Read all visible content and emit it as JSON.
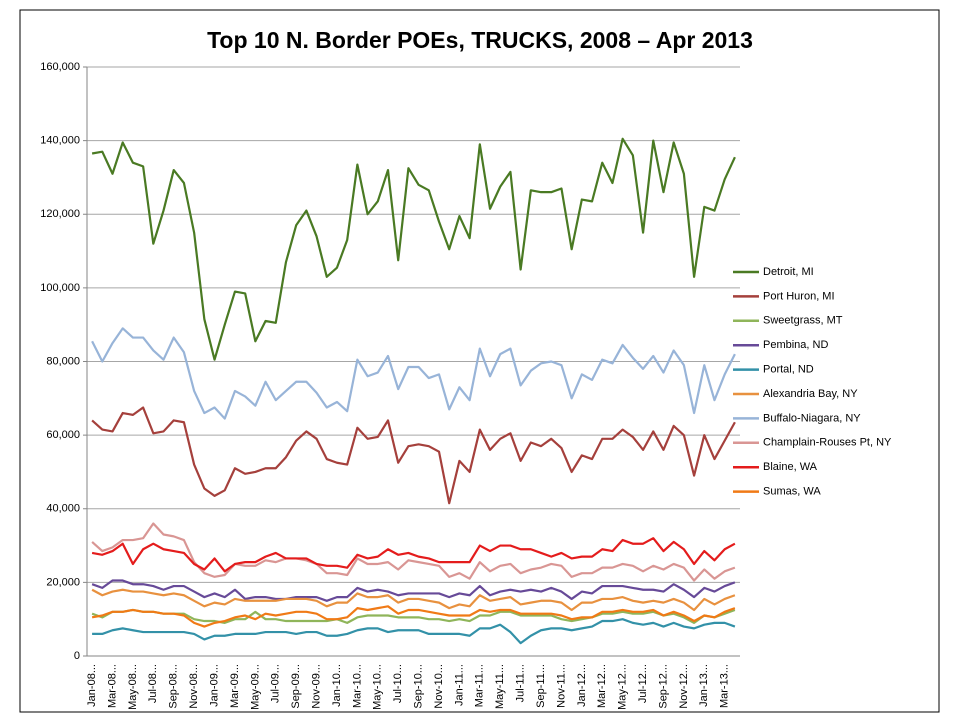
{
  "chart_data": {
    "type": "line",
    "title": "Top 10 N. Border POEs,  TRUCKS, 2008 – Apr 2013",
    "categories": [
      "Jan-08...",
      null,
      "Mar-08...",
      null,
      "May-08...",
      null,
      "Jul-08...",
      null,
      "Sep-08...",
      null,
      "Nov-08...",
      null,
      "Jan-09...",
      null,
      "Mar-09...",
      null,
      "May-09...",
      null,
      "Jul-09...",
      null,
      "Sep-09...",
      null,
      "Nov-09...",
      null,
      "Jan-10...",
      null,
      "Mar-10...",
      null,
      "May-10...",
      null,
      "Jul-10...",
      null,
      "Sep-10...",
      null,
      "Nov-10...",
      null,
      "Jan-11...",
      null,
      "Mar-11...",
      null,
      "May-11...",
      null,
      "Jul-11...",
      null,
      "Sep-11...",
      null,
      "Nov-11...",
      null,
      "Jan-12...",
      null,
      "Mar-12...",
      null,
      "May-12...",
      null,
      "Jul-12...",
      null,
      "Sep-12...",
      null,
      "Nov-12...",
      null,
      "Jan-13...",
      null,
      "Mar-13...",
      null
    ],
    "ylim": [
      0,
      160000
    ],
    "yticks": [
      0,
      {
        "value": 20000,
        "label": "20,000"
      },
      {
        "value": 40000,
        "label": "40,000"
      },
      {
        "value": 60000,
        "label": "60,000"
      },
      {
        "value": 80000,
        "label": "80,000"
      },
      {
        "value": 100000,
        "label": "100,000"
      },
      {
        "value": 120000,
        "label": "120,000"
      },
      {
        "value": 140000,
        "label": "140,000"
      },
      {
        "value": 160000,
        "label": "160,000"
      }
    ],
    "grid": true,
    "legend": "right",
    "series": [
      {
        "name": "Detroit, MI",
        "color": "#4a7a23",
        "values": [
          136500,
          137000,
          131000,
          139500,
          134000,
          133000,
          112000,
          121000,
          132000,
          128500,
          115000,
          91500,
          80500,
          90000,
          99000,
          98500,
          85500,
          91000,
          90500,
          107000,
          117000,
          121000,
          114000,
          103000,
          105500,
          113000,
          133500,
          120000,
          123500,
          132000,
          107500,
          132500,
          128000,
          126500,
          118000,
          110500,
          119500,
          113500,
          139000,
          121500,
          127500,
          131500,
          105000,
          126500,
          126000,
          126000,
          127000,
          110500,
          124000,
          123500,
          134000,
          128500,
          140500,
          136000,
          115000,
          140000,
          126000,
          139500,
          131000,
          103000,
          122000,
          121000,
          129500,
          135500
        ]
      },
      {
        "name": "Port Huron, MI",
        "color": "#a5403c",
        "values": [
          64000,
          61500,
          61000,
          66000,
          65500,
          67500,
          60500,
          61000,
          64000,
          63500,
          52000,
          45500,
          43500,
          45000,
          51000,
          49500,
          50000,
          51000,
          51000,
          54000,
          58500,
          61000,
          59000,
          53500,
          52500,
          52000,
          62000,
          59000,
          59500,
          64000,
          52500,
          57000,
          57500,
          57000,
          55500,
          41500,
          53000,
          50000,
          61500,
          56000,
          59000,
          60500,
          53000,
          58000,
          57000,
          59000,
          56500,
          50000,
          54500,
          53500,
          59000,
          59000,
          61500,
          59500,
          56000,
          61000,
          56000,
          62500,
          60000,
          49000,
          60000,
          53500,
          58500,
          63500
        ]
      },
      {
        "name": "Sweetgrass, MT",
        "color": "#8fb55a",
        "values": [
          11500,
          10500,
          12000,
          12000,
          12500,
          12000,
          12000,
          11500,
          11500,
          11500,
          10000,
          9500,
          9500,
          9000,
          10000,
          10000,
          12000,
          10000,
          10000,
          9500,
          9500,
          9500,
          9500,
          9500,
          10000,
          9000,
          10500,
          11000,
          11000,
          11000,
          10500,
          10500,
          10500,
          10000,
          10000,
          9500,
          10000,
          9500,
          11000,
          11000,
          12000,
          12000,
          11000,
          11000,
          11000,
          11000,
          10000,
          9500,
          10000,
          10500,
          11500,
          11500,
          12000,
          11500,
          11500,
          12000,
          11000,
          11500,
          10500,
          9000,
          11000,
          10500,
          11500,
          12500
        ]
      },
      {
        "name": "Pembina, ND",
        "color": "#674a98",
        "values": [
          19500,
          18500,
          20500,
          20500,
          19500,
          19500,
          19000,
          18000,
          19000,
          19000,
          17500,
          16000,
          17000,
          16000,
          18000,
          15500,
          16000,
          16000,
          15500,
          15500,
          16000,
          16000,
          16000,
          15000,
          16000,
          16000,
          18500,
          17500,
          18000,
          17500,
          16500,
          17000,
          17000,
          17000,
          17000,
          16000,
          17000,
          16500,
          19000,
          16500,
          17500,
          18000,
          17500,
          18000,
          17500,
          18500,
          17500,
          15500,
          17500,
          17000,
          19000,
          19000,
          19000,
          18500,
          18000,
          18000,
          17500,
          19500,
          18000,
          16000,
          18500,
          17500,
          19000,
          20000
        ]
      },
      {
        "name": "Portal, ND",
        "color": "#3391a8",
        "values": [
          6000,
          6000,
          7000,
          7500,
          7000,
          6500,
          6500,
          6500,
          6500,
          6500,
          6000,
          4500,
          5500,
          5500,
          6000,
          6000,
          6000,
          6500,
          6500,
          6500,
          6000,
          6500,
          6500,
          5500,
          5500,
          6000,
          7000,
          7500,
          7500,
          6500,
          7000,
          7000,
          7000,
          6000,
          6000,
          6000,
          6000,
          5500,
          7500,
          7500,
          8500,
          6500,
          3500,
          5500,
          7000,
          7500,
          7500,
          7000,
          7500,
          8000,
          9500,
          9500,
          10000,
          9000,
          8500,
          9000,
          8000,
          9000,
          8000,
          7500,
          8500,
          9000,
          9000,
          8000
        ]
      },
      {
        "name": "Alexandria Bay, NY",
        "color": "#e8913f",
        "values": [
          18000,
          16500,
          17500,
          18000,
          17500,
          17500,
          17000,
          16500,
          17000,
          16500,
          15000,
          13500,
          14500,
          14000,
          15500,
          15000,
          15000,
          15000,
          15000,
          15500,
          15500,
          15500,
          15000,
          13500,
          14500,
          14500,
          17000,
          16000,
          16000,
          16500,
          14500,
          15500,
          15500,
          15000,
          14500,
          13000,
          14000,
          13500,
          16500,
          15000,
          15500,
          16000,
          14000,
          14500,
          15000,
          15000,
          14500,
          12500,
          14500,
          14500,
          15500,
          15500,
          16000,
          15000,
          14500,
          15000,
          14500,
          15500,
          14500,
          12500,
          15500,
          14000,
          15500,
          16500
        ]
      },
      {
        "name": "Buffalo-Niagara, NY",
        "color": "#98b4d8",
        "values": [
          85500,
          80000,
          85000,
          89000,
          86500,
          86500,
          83000,
          80500,
          86500,
          82500,
          72000,
          66000,
          67500,
          64500,
          72000,
          70500,
          68000,
          74500,
          69500,
          72000,
          74500,
          74500,
          71500,
          67500,
          69000,
          66500,
          80500,
          76000,
          77000,
          81500,
          72500,
          78500,
          78500,
          75500,
          76500,
          67000,
          73000,
          69500,
          83500,
          76000,
          82000,
          83500,
          73500,
          77500,
          79500,
          80000,
          79000,
          70000,
          76500,
          75000,
          80500,
          79500,
          84500,
          81000,
          78000,
          81500,
          77000,
          83000,
          79000,
          66000,
          79000,
          69500,
          76500,
          82000
        ]
      },
      {
        "name": "Champlain-Rouses Pt, NY",
        "color": "#d99694",
        "values": [
          31000,
          28500,
          29500,
          31500,
          31500,
          32000,
          36000,
          33000,
          32500,
          31500,
          25500,
          22500,
          21500,
          22000,
          25000,
          24500,
          24500,
          26000,
          25500,
          26500,
          26500,
          26000,
          25000,
          22500,
          22500,
          22000,
          26500,
          25000,
          25000,
          25500,
          23500,
          26000,
          25500,
          25000,
          24500,
          21500,
          22500,
          21000,
          25500,
          23000,
          24500,
          25000,
          22500,
          23500,
          24000,
          25000,
          24500,
          21500,
          22500,
          22500,
          24000,
          24000,
          25000,
          24500,
          23000,
          24500,
          23500,
          25000,
          24000,
          20500,
          23500,
          21000,
          23000,
          24000
        ]
      },
      {
        "name": "Blaine, WA",
        "color": "#e41c1c",
        "values": [
          28000,
          27500,
          28500,
          30500,
          25000,
          29000,
          30500,
          29000,
          28500,
          28000,
          25000,
          23500,
          26500,
          23000,
          25000,
          25500,
          25500,
          27000,
          28000,
          26500,
          26500,
          26500,
          25000,
          24500,
          24500,
          24000,
          27500,
          26500,
          27000,
          29000,
          27500,
          28000,
          27000,
          26500,
          25500,
          25500,
          25500,
          25500,
          30000,
          28500,
          30000,
          30000,
          29000,
          29000,
          28000,
          27000,
          28000,
          26500,
          27000,
          27000,
          29000,
          28500,
          31500,
          30500,
          30500,
          32000,
          28500,
          31000,
          29000,
          25000,
          28500,
          26000,
          29000,
          30500
        ]
      },
      {
        "name": "Sumas, WA",
        "color": "#f07a16",
        "values": [
          10500,
          11000,
          12000,
          12000,
          12500,
          12000,
          12000,
          11500,
          11500,
          11000,
          9000,
          8000,
          9000,
          9500,
          10500,
          11000,
          10000,
          11500,
          11000,
          11500,
          12000,
          12000,
          11500,
          10000,
          10000,
          10500,
          13000,
          12500,
          13000,
          13500,
          11500,
          12500,
          12500,
          12000,
          11500,
          11000,
          11000,
          11000,
          12500,
          12000,
          12500,
          12500,
          11500,
          11500,
          11500,
          11500,
          11000,
          10000,
          10500,
          10500,
          12000,
          12000,
          12500,
          12000,
          12000,
          12500,
          11000,
          12000,
          11000,
          9500,
          11000,
          10500,
          12000,
          13000
        ]
      }
    ]
  }
}
